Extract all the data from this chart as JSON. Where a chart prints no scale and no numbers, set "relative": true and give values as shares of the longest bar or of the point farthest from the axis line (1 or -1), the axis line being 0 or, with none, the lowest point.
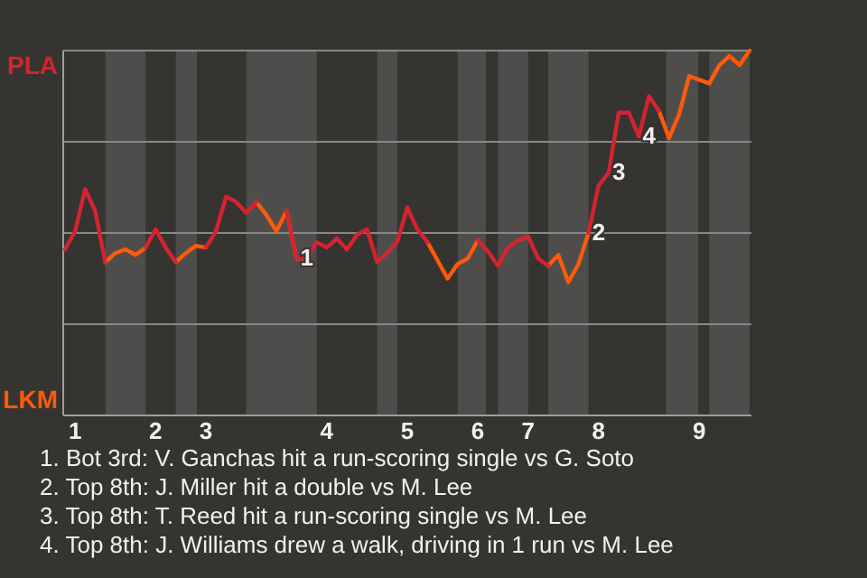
{
  "chart_data": {
    "type": "line",
    "relative": true,
    "categories": [
      null,
      "1",
      null,
      null,
      null,
      null,
      null,
      null,
      null,
      "2",
      null,
      null,
      null,
      null,
      "3",
      null,
      null,
      null,
      null,
      null,
      null,
      null,
      null,
      null,
      null,
      null,
      "4",
      null,
      null,
      null,
      null,
      null,
      null,
      null,
      "5",
      null,
      null,
      null,
      null,
      null,
      null,
      "6",
      null,
      null,
      null,
      null,
      "7",
      null,
      null,
      null,
      null,
      null,
      null,
      "8",
      null,
      null,
      null,
      null,
      null,
      null,
      null,
      null,
      null,
      "9",
      null,
      null,
      null,
      null,
      null
    ],
    "ref_lines": [
      {
        "axis": "y",
        "value": 1,
        "color": "#8a8886"
      },
      {
        "axis": "y",
        "value": 0.5,
        "color": "#8a8886"
      },
      {
        "axis": "y",
        "value": 0,
        "color": "#8a8886"
      },
      {
        "axis": "y",
        "value": -0.5,
        "color": "#8a8886"
      }
    ],
    "marker": "none",
    "series": [
      {
        "color": "#d42332",
        "values": [
          -0.09,
          0.01,
          0.24,
          0.12,
          -0.16,
          null,
          null,
          null,
          -0.08,
          0.02,
          -0.08,
          -0.16,
          null,
          null,
          -0.08,
          0.01,
          0.2,
          0.17,
          0.11,
          0.17,
          null,
          null,
          0.12,
          -0.14,
          -0.14,
          -0.05,
          -0.08,
          -0.03,
          -0.09,
          -0.01,
          0.02,
          -0.16,
          -0.11,
          -0.05,
          0.14,
          0.02,
          -0.05,
          null,
          null,
          null,
          null,
          -0.04,
          -0.1,
          -0.18,
          -0.08,
          -0.04,
          -0.02,
          -0.14,
          -0.18,
          null,
          null,
          null,
          0,
          0.26,
          0.33,
          0.66,
          0.66,
          0.53,
          0.75,
          0.67,
          null,
          null,
          null,
          null,
          null,
          null,
          null,
          null,
          null
        ]
      },
      {
        "color": "#ff5a0a",
        "values": [
          null,
          null,
          null,
          null,
          -0.16,
          -0.11,
          -0.09,
          -0.12,
          -0.08,
          null,
          null,
          -0.16,
          -0.11,
          -0.07,
          -0.08,
          null,
          null,
          null,
          null,
          0.17,
          0.1,
          0.01,
          0.12,
          -0.14,
          -0.14,
          null,
          null,
          null,
          null,
          null,
          null,
          null,
          null,
          null,
          null,
          null,
          -0.05,
          -0.15,
          -0.25,
          -0.17,
          -0.14,
          -0.04,
          null,
          null,
          null,
          -0.04,
          -0.02,
          null,
          -0.18,
          -0.12,
          -0.27,
          -0.17,
          0,
          null,
          null,
          null,
          null,
          null,
          null,
          0.67,
          0.52,
          0.65,
          0.86,
          0.84,
          0.82,
          0.92,
          0.97,
          0.92,
          1
        ]
      }
    ],
    "annotations": [
      {
        "text": "1",
        "y": -0.14
      },
      {
        "text": "2",
        "y": 0
      },
      {
        "text": "3",
        "y": 0.33
      },
      {
        "text": "4",
        "y": 0.53
      },
      "PLA",
      "LKM",
      "1. Bot 3rd: V. Ganchas hit a run-scoring single vs G. Soto",
      "2. Top 8th: J. Miller hit a double vs M. Lee",
      "3. Top 8th: T. Reed hit a run-scoring single vs M. Lee",
      "4. Top 8th: J. Williams drew a walk, driving in 1 run vs M. Lee"
    ]
  }
}
